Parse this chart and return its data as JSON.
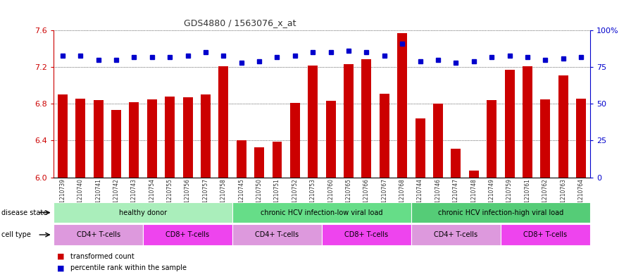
{
  "title": "GDS4880 / 1563076_x_at",
  "samples": [
    "GSM1210739",
    "GSM1210740",
    "GSM1210741",
    "GSM1210742",
    "GSM1210743",
    "GSM1210754",
    "GSM1210755",
    "GSM1210756",
    "GSM1210757",
    "GSM1210758",
    "GSM1210745",
    "GSM1210750",
    "GSM1210751",
    "GSM1210752",
    "GSM1210753",
    "GSM1210760",
    "GSM1210765",
    "GSM1210766",
    "GSM1210767",
    "GSM1210768",
    "GSM1210744",
    "GSM1210746",
    "GSM1210747",
    "GSM1210748",
    "GSM1210749",
    "GSM1210759",
    "GSM1210761",
    "GSM1210762",
    "GSM1210763",
    "GSM1210764"
  ],
  "bar_values": [
    6.9,
    6.86,
    6.84,
    6.73,
    6.82,
    6.85,
    6.88,
    6.87,
    6.9,
    7.21,
    6.4,
    6.33,
    6.39,
    6.81,
    7.22,
    6.83,
    7.23,
    7.29,
    6.91,
    7.57,
    6.64,
    6.8,
    6.31,
    6.07,
    6.84,
    7.17,
    7.21,
    6.85,
    7.11,
    6.86
  ],
  "percentile_values": [
    83,
    83,
    80,
    80,
    82,
    82,
    82,
    83,
    85,
    83,
    78,
    79,
    82,
    83,
    85,
    85,
    86,
    85,
    83,
    91,
    79,
    80,
    78,
    79,
    82,
    83,
    82,
    80,
    81,
    82
  ],
  "bar_color": "#cc0000",
  "percentile_color": "#0000cc",
  "ylim_left": [
    6.0,
    7.6
  ],
  "ylim_right": [
    0,
    100
  ],
  "yticks_left": [
    6.0,
    6.4,
    6.8,
    7.2,
    7.6
  ],
  "yticks_right": [
    0,
    25,
    50,
    75,
    100
  ],
  "ytick_labels_right": [
    "0",
    "25",
    "50",
    "75",
    "100%"
  ],
  "disease_state_groups": [
    {
      "label": "healthy donor",
      "start": 0,
      "end": 9,
      "color": "#aaeebb"
    },
    {
      "label": "chronic HCV infection-low viral load",
      "start": 10,
      "end": 19,
      "color": "#66dd88"
    },
    {
      "label": "chronic HCV infection-high viral load",
      "start": 20,
      "end": 29,
      "color": "#55cc77"
    }
  ],
  "cell_type_groups": [
    {
      "label": "CD4+ T-cells",
      "start": 0,
      "end": 4,
      "color": "#dd99dd"
    },
    {
      "label": "CD8+ T-cells",
      "start": 5,
      "end": 9,
      "color": "#ee44ee"
    },
    {
      "label": "CD4+ T-cells",
      "start": 10,
      "end": 14,
      "color": "#dd99dd"
    },
    {
      "label": "CD8+ T-cells",
      "start": 15,
      "end": 19,
      "color": "#ee44ee"
    },
    {
      "label": "CD4+ T-cells",
      "start": 20,
      "end": 24,
      "color": "#dd99dd"
    },
    {
      "label": "CD8+ T-cells",
      "start": 25,
      "end": 29,
      "color": "#ee44ee"
    }
  ],
  "plot_bg": "#ffffff",
  "label_disease_state": "disease state",
  "label_cell_type": "cell type"
}
